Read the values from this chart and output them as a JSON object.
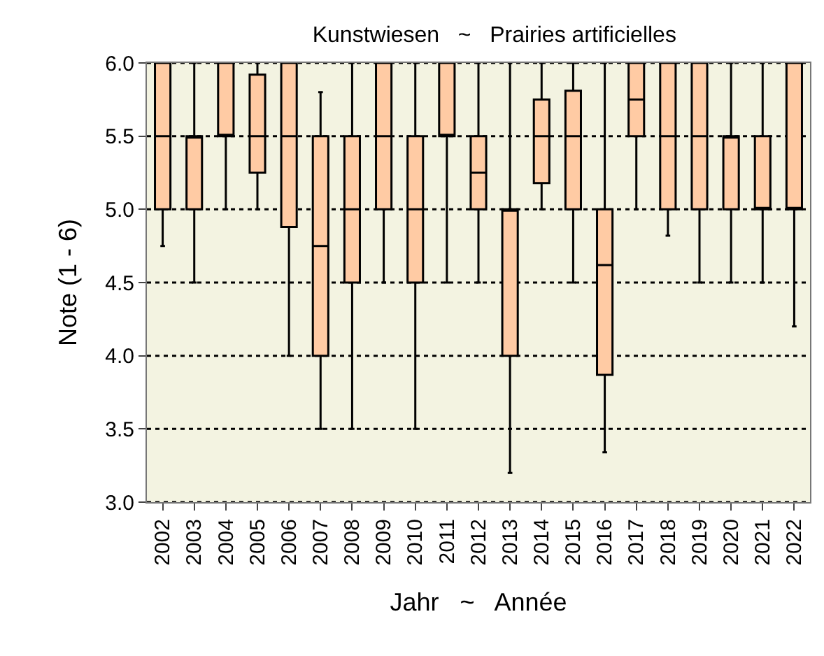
{
  "chart_data": {
    "type": "box",
    "title": "Kunstwiesen   ~   Prairies artificielles",
    "xlabel": "Jahr   ~   Année",
    "ylabel": "Note (1 - 6)",
    "categories": [
      "2002",
      "2003",
      "2004",
      "2005",
      "2006",
      "2007",
      "2008",
      "2009",
      "2010",
      "2011",
      "2012",
      "2013",
      "2014",
      "2015",
      "2016",
      "2017",
      "2018",
      "2019",
      "2020",
      "2021",
      "2022"
    ],
    "color": "#ffcba4",
    "ylim": [
      3.0,
      6.0
    ],
    "yticks": [
      {
        "value": 3.0,
        "label": "3.0"
      },
      {
        "value": 3.5,
        "label": "3.5"
      },
      {
        "value": 4.0,
        "label": "4.0"
      },
      {
        "value": 4.5,
        "label": "4.5"
      },
      {
        "value": 5.0,
        "label": "5.0"
      },
      {
        "value": 5.5,
        "label": "5.5"
      },
      {
        "value": 6.0,
        "label": "6.0"
      }
    ],
    "grid": "y",
    "legend": false,
    "boxes": [
      {
        "low": 4.75,
        "q1": 5.0,
        "median": 5.5,
        "q3": 6.0,
        "high": 6.0
      },
      {
        "low": 4.5,
        "q1": 5.0,
        "median": 5.5,
        "q3": 5.5,
        "high": 6.0
      },
      {
        "low": 5.0,
        "q1": 5.5,
        "median": 5.5,
        "q3": 6.0,
        "high": 6.0
      },
      {
        "low": 5.0,
        "q1": 5.25,
        "median": 5.5,
        "q3": 5.92,
        "high": 6.0
      },
      {
        "low": 4.0,
        "q1": 4.88,
        "median": 5.5,
        "q3": 6.0,
        "high": 6.0
      },
      {
        "low": 3.5,
        "q1": 4.0,
        "median": 4.75,
        "q3": 5.5,
        "high": 5.8
      },
      {
        "low": 3.5,
        "q1": 4.5,
        "median": 5.0,
        "q3": 5.5,
        "high": 6.0
      },
      {
        "low": 4.5,
        "q1": 5.0,
        "median": 5.5,
        "q3": 6.0,
        "high": 6.0
      },
      {
        "low": 3.5,
        "q1": 4.5,
        "median": 5.0,
        "q3": 5.5,
        "high": 6.0
      },
      {
        "low": 4.5,
        "q1": 5.5,
        "median": 5.5,
        "q3": 6.0,
        "high": 6.0
      },
      {
        "low": 4.5,
        "q1": 5.0,
        "median": 5.25,
        "q3": 5.5,
        "high": 6.0
      },
      {
        "low": 3.2,
        "q1": 4.0,
        "median": 5.0,
        "q3": 5.0,
        "high": 6.0
      },
      {
        "low": 5.0,
        "q1": 5.18,
        "median": 5.5,
        "q3": 5.75,
        "high": 6.0
      },
      {
        "low": 4.5,
        "q1": 5.0,
        "median": 5.5,
        "q3": 5.81,
        "high": 6.0
      },
      {
        "low": 3.34,
        "q1": 3.87,
        "median": 4.62,
        "q3": 5.0,
        "high": 6.0
      },
      {
        "low": 5.0,
        "q1": 5.5,
        "median": 5.75,
        "q3": 6.0,
        "high": 6.0
      },
      {
        "low": 4.82,
        "q1": 5.0,
        "median": 5.5,
        "q3": 6.0,
        "high": 6.0
      },
      {
        "low": 4.5,
        "q1": 5.0,
        "median": 5.5,
        "q3": 6.0,
        "high": 6.0
      },
      {
        "low": 4.5,
        "q1": 5.0,
        "median": 5.5,
        "q3": 5.5,
        "high": 6.0
      },
      {
        "low": 4.5,
        "q1": 5.0,
        "median": 5.0,
        "q3": 5.5,
        "high": 6.0
      },
      {
        "low": 4.2,
        "q1": 5.0,
        "median": 5.0,
        "q3": 6.0,
        "high": 6.0
      }
    ]
  }
}
